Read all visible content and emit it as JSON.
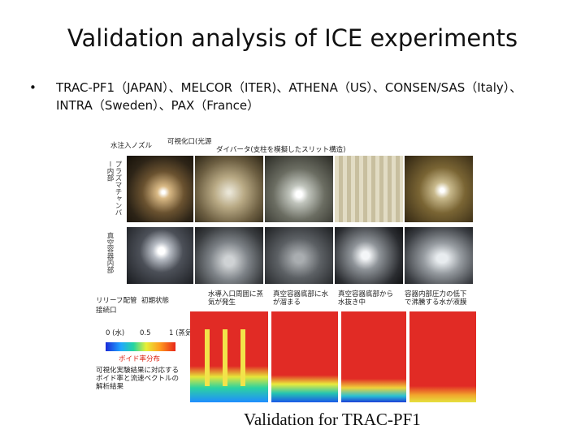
{
  "slide": {
    "title": "Validation analysis of ICE experiments",
    "bullet_marker": "•",
    "bullet_line1": "TRAC-PF1（JAPAN）、MELCOR（ITER)、ATHENA（US）、CONSEN/SAS（Italy）、",
    "bullet_line2": "INTRA（Sweden）、PAX（France）",
    "caption": "Validation for TRAC-PF1"
  },
  "figure": {
    "label_nozzle": "水注入ノズル",
    "label_window": "可視化口(光源",
    "label_diverter": "ダイバータ(支柱を模擬したスリット構造)",
    "label_plasma_chamber": "プラズマチャンバー内部",
    "label_vacuum": "真空容器内部",
    "label_relief": "リリーフ配管",
    "label_initial": "初期状態",
    "label_port": "接続口",
    "label_col2": "水導入口周囲に蒸気が発生",
    "label_col3": "真空容器底部に水が溜まる",
    "label_col4": "真空容器底部から水抜き中",
    "label_col5": "容器内部圧力の低下で沸騰する水が液膜",
    "scale_min": "0 (水)",
    "scale_mid": "0.5",
    "scale_max": "1 (蒸気)",
    "scale_title": "ボイド率分布",
    "note": "可視化実験結果に対応するボイド率と流速ベクトルの解析結果"
  },
  "colors": {
    "accent_red": "#dd2211",
    "sim_bg": "#e02a28"
  }
}
